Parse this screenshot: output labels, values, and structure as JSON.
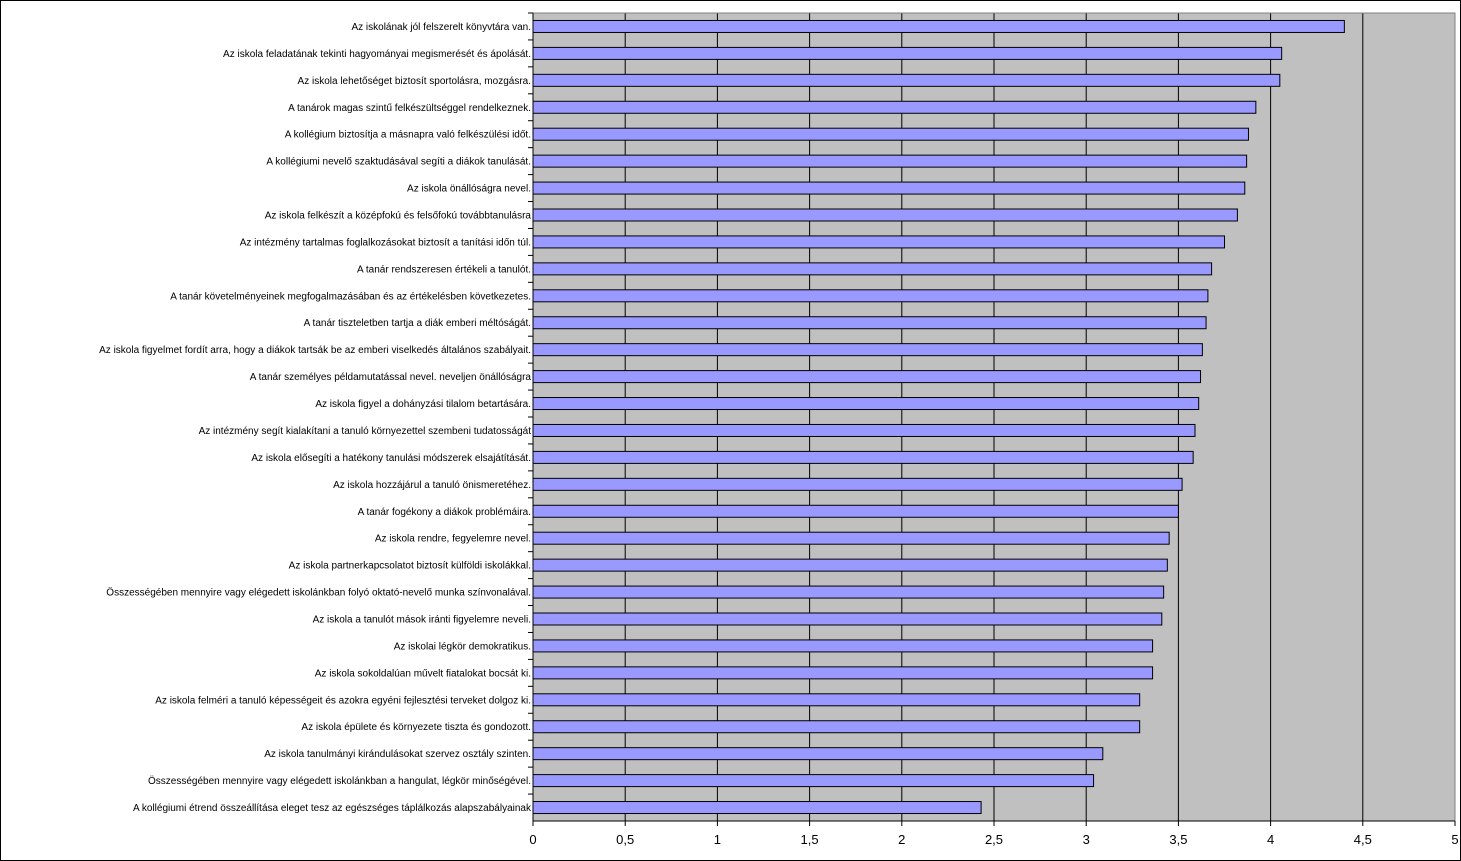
{
  "chart_data": {
    "type": "bar",
    "orientation": "horizontal",
    "title": "",
    "xlabel": "",
    "ylabel": "",
    "xlim": [
      0,
      5
    ],
    "grid": true,
    "legend": "none",
    "x_ticks": [
      "0",
      "0,5",
      "1",
      "1,5",
      "2",
      "2,5",
      "3",
      "3,5",
      "4",
      "4,5",
      "5"
    ],
    "colors": {
      "bar": "#9999FF",
      "plot_area": "#C0C0C0",
      "bar_edge": "#000000"
    },
    "categories": [
      "Az iskolának jól felszerelt könyvtára van.",
      "Az iskola feladatának tekinti hagyományai megismerését és ápolását.",
      "Az iskola lehetőséget biztosít sportolásra, mozgásra.",
      "A tanárok magas szintű felkészültséggel rendelkeznek.",
      "A kollégium biztosítja a másnapra való felkészülési időt.",
      "A kollégiumi nevelő szaktudásával segíti a diákok tanulását.",
      "Az iskola önállóságra nevel.",
      "Az iskola felkészít a középfokú és felsőfokú továbbtanulásra",
      "Az intézmény tartalmas foglalkozásokat biztosít a tanítási időn túl.",
      "A tanár rendszeresen értékeli a tanulót.",
      "A tanár követelményeinek megfogalmazásában és az értékelésben következetes.",
      "A tanár tiszteletben tartja a diák emberi méltóságát.",
      "Az iskola figyelmet fordít arra, hogy a diákok tartsák be az emberi viselkedés általános szabályait.",
      "A tanár személyes példamutatással nevel. neveljen önállóságra",
      "Az iskola figyel a dohányzási tilalom betartására.",
      "Az intézmény segít kialakítani a tanuló környezettel szembeni tudatosságát",
      "Az iskola elősegíti a hatékony tanulási módszerek elsajátítását.",
      "Az iskola hozzájárul a tanuló önismeretéhez.",
      "A tanár fogékony a diákok problémáira.",
      "Az iskola rendre, fegyelemre nevel.",
      "Az iskola partnerkapcsolatot biztosít külföldi iskolákkal.",
      "Összességében mennyire vagy elégedett iskolánkban folyó oktató-nevelő munka színvonalával.",
      "Az iskola a tanulót mások iránti figyelemre neveli.",
      "Az iskolai légkör demokratikus.",
      "Az iskola sokoldalúan művelt fiatalokat bocsát ki.",
      "Az iskola felméri a tanuló képességeit és azokra egyéni fejlesztési terveket dolgoz ki.",
      "Az iskola épülete és környezete tiszta és gondozott.",
      "Az iskola tanulmányi kirándulásokat szervez osztály szinten.",
      "Összességében mennyire vagy elégedett iskolánkban a hangulat, légkör minőségével.",
      "A kollégiumi étrend összeállítása eleget tesz az egészséges táplálkozás alapszabályainak"
    ],
    "values": [
      4.4,
      4.06,
      4.05,
      3.92,
      3.88,
      3.87,
      3.86,
      3.82,
      3.75,
      3.68,
      3.66,
      3.65,
      3.63,
      3.62,
      3.61,
      3.59,
      3.58,
      3.52,
      3.5,
      3.45,
      3.44,
      3.42,
      3.41,
      3.36,
      3.36,
      3.29,
      3.29,
      3.09,
      3.04,
      2.43
    ]
  }
}
